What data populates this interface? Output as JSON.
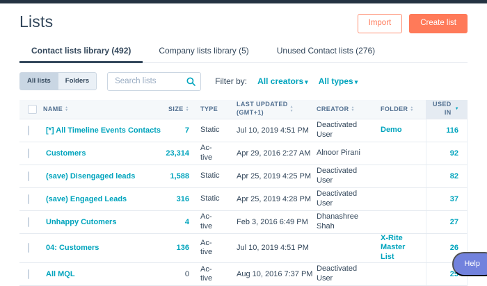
{
  "colors": {
    "topbar": "#253342",
    "accent_orange": "#ff7a59",
    "link_teal": "#00a4bd",
    "help_purple": "#7282dd"
  },
  "header": {
    "title": "Lists",
    "import_label": "Import",
    "create_label": "Create list"
  },
  "tabs": [
    {
      "label": "Contact lists library (492)",
      "active": true
    },
    {
      "label": "Company lists library (5)",
      "active": false
    },
    {
      "label": "Unused Contact lists (276)",
      "active": false
    }
  ],
  "filters": {
    "toggle": [
      {
        "label": "All lists",
        "active": true
      },
      {
        "label": "Folders",
        "active": false
      }
    ],
    "search_placeholder": "Search lists",
    "filter_by_label": "Filter by:",
    "dropdowns": [
      {
        "label": "All creators"
      },
      {
        "label": "All types"
      }
    ]
  },
  "table": {
    "columns": [
      {
        "label": "NAME",
        "sortable": true
      },
      {
        "label": "SIZE",
        "sortable": true
      },
      {
        "label": "TYPE",
        "sortable": false
      },
      {
        "label": "LAST UPDATED\n(GMT+1)",
        "sortable": true
      },
      {
        "label": "CREATOR",
        "sortable": true
      },
      {
        "label": "FOLDER",
        "sortable": true
      },
      {
        "label": "USED\nIN",
        "sortable": true,
        "sorted": "desc"
      }
    ],
    "rows": [
      {
        "name": "[*] All Timeline Events Contacts",
        "size": "7",
        "size_link": true,
        "type": "Static",
        "updated": "Jul 10, 2019 4:51 PM",
        "creator": "Deactivated User",
        "folder": "Demo",
        "used_in": "116"
      },
      {
        "name": "Customers",
        "size": "23,314",
        "size_link": true,
        "type": "Ac-\ntive",
        "updated": "Apr 29, 2016 2:27 AM",
        "creator": "Alnoor Pirani",
        "folder": "",
        "used_in": "92"
      },
      {
        "name": "(save) Disengaged leads",
        "size": "1,588",
        "size_link": true,
        "type": "Static",
        "updated": "Apr 25, 2019 4:25 PM",
        "creator": "Deactivated User",
        "folder": "",
        "used_in": "82"
      },
      {
        "name": "(save) Engaged Leads",
        "size": "316",
        "size_link": true,
        "type": "Static",
        "updated": "Apr 25, 2019 4:28 PM",
        "creator": "Deactivated User",
        "folder": "",
        "used_in": "37"
      },
      {
        "name": "Unhappy Cutomers",
        "size": "4",
        "size_link": true,
        "type": "Ac-\ntive",
        "updated": "Feb 3, 2016 6:49 PM",
        "creator": "Dhanashree\nShah",
        "folder": "",
        "used_in": "27"
      },
      {
        "name": "04: Customers",
        "size": "136",
        "size_link": true,
        "type": "Ac-\ntive",
        "updated": "Jul 10, 2019 4:51 PM",
        "creator": "",
        "folder": "X-Rite Master\nList",
        "used_in": "26"
      },
      {
        "name": "All MQL",
        "size": "0",
        "size_link": false,
        "type": "Ac-\ntive",
        "updated": "Aug 10, 2016 7:37 PM",
        "creator": "Deactivated User",
        "folder": "",
        "used_in": "25"
      }
    ]
  },
  "help": {
    "label": "Help"
  }
}
